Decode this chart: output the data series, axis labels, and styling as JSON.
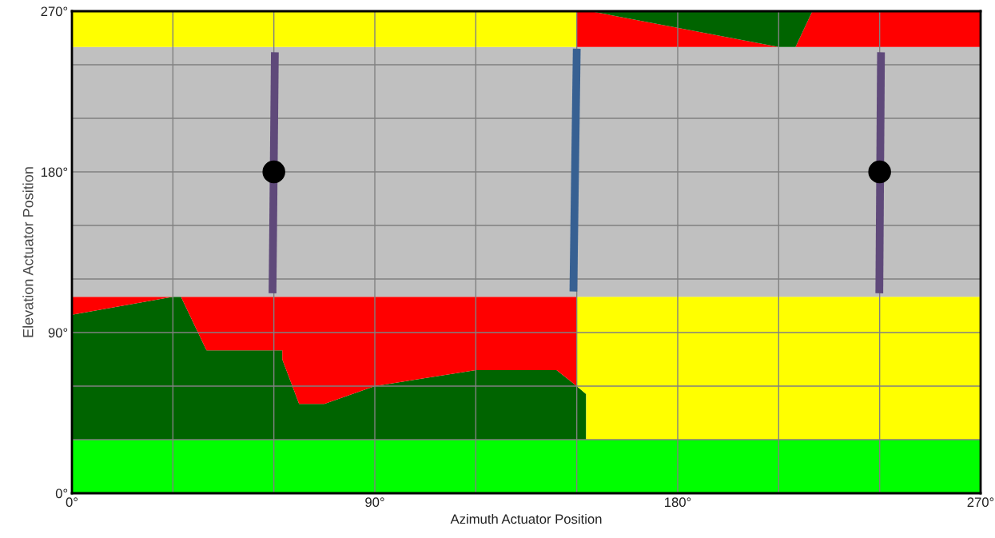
{
  "chart_data": {
    "type": "area",
    "stacked": true,
    "xlabel": "Azimuth Actuator Position",
    "ylabel": "Elevation Actuator Position",
    "xlim": [
      0,
      270
    ],
    "ylim": [
      0,
      270
    ],
    "x": [
      0,
      30,
      32.4,
      40,
      62.5,
      62.5,
      67.5,
      75,
      90,
      120,
      144,
      150,
      150,
      152.8,
      152.8,
      154,
      210,
      215,
      220,
      270
    ],
    "xticks": [
      {
        "value": 0,
        "label": "0°"
      },
      {
        "value": 30,
        "label": null
      },
      {
        "value": 60,
        "label": null
      },
      {
        "value": 90,
        "label": "90°"
      },
      {
        "value": 120,
        "label": null
      },
      {
        "value": 150,
        "label": null
      },
      {
        "value": 180,
        "label": "180°"
      },
      {
        "value": 210,
        "label": null
      },
      {
        "value": 240,
        "label": null
      },
      {
        "value": 270,
        "label": "270°"
      }
    ],
    "yticks": [
      {
        "value": 0,
        "label": "0°"
      },
      {
        "value": 30,
        "label": null
      },
      {
        "value": 60,
        "label": null
      },
      {
        "value": 90,
        "label": "90°"
      },
      {
        "value": 120,
        "label": null
      },
      {
        "value": 150,
        "label": null
      },
      {
        "value": 180,
        "label": "180°"
      },
      {
        "value": 210,
        "label": null
      },
      {
        "value": 240,
        "label": null
      },
      {
        "value": 270,
        "label": "270°"
      }
    ],
    "grid": true,
    "series": [
      {
        "color": "#00ff00",
        "values": [
          30,
          30,
          30,
          30,
          30,
          30,
          30,
          30,
          30,
          30,
          30,
          30,
          30,
          30,
          30,
          30,
          30,
          30,
          30,
          30
        ]
      },
      {
        "color": "#006400",
        "values": [
          70,
          80,
          80,
          50,
          50,
          45,
          20,
          20,
          30,
          39,
          39,
          30,
          30,
          25.5,
          0,
          null,
          null,
          null,
          null,
          null
        ]
      },
      {
        "color": "#ff0000",
        "values": [
          10,
          0,
          0,
          30,
          30,
          35,
          60,
          60,
          50,
          41,
          41,
          50,
          null,
          null,
          null,
          null,
          null,
          null,
          null,
          null
        ]
      },
      {
        "color": "#ffff00",
        "values": [
          null,
          null,
          null,
          null,
          null,
          null,
          null,
          null,
          null,
          null,
          null,
          null,
          50,
          54.5,
          80,
          80,
          80,
          80,
          80,
          80
        ]
      },
      {
        "color": "#c0c0c0",
        "values": [
          140,
          140,
          140,
          140,
          140,
          140,
          140,
          140,
          140,
          140,
          140,
          140,
          140,
          140,
          140,
          140,
          140,
          140,
          140,
          140
        ]
      },
      {
        "color": "#ffff00",
        "values": [
          20,
          20,
          20,
          20,
          20,
          20,
          20,
          20,
          20,
          20,
          20,
          20,
          null,
          null,
          null,
          null,
          null,
          null,
          null,
          null
        ]
      },
      {
        "color": "#ff0000",
        "values": [
          null,
          null,
          null,
          null,
          null,
          null,
          null,
          null,
          null,
          null,
          null,
          null,
          20,
          20,
          20,
          20,
          0,
          0,
          20,
          20
        ]
      },
      {
        "color": "#006400",
        "values": [
          null,
          null,
          null,
          null,
          null,
          null,
          null,
          null,
          null,
          null,
          null,
          null,
          null,
          null,
          null,
          0,
          20,
          20,
          0,
          null
        ]
      },
      {
        "type": "line",
        "color": "#5f497a",
        "x": [
          59.6,
          60.3
        ],
        "values": [
          112,
          247
        ]
      },
      {
        "type": "line",
        "color": "#376092",
        "x": [
          149,
          150
        ],
        "values": [
          113,
          249
        ]
      },
      {
        "type": "line",
        "color": "#5f497a",
        "x": [
          239.9,
          240.4
        ],
        "values": [
          112,
          247
        ]
      },
      {
        "type": "scatter",
        "color": "#000000",
        "marker": "circle",
        "x": [
          60,
          240
        ],
        "values": [
          180,
          180
        ]
      }
    ]
  }
}
